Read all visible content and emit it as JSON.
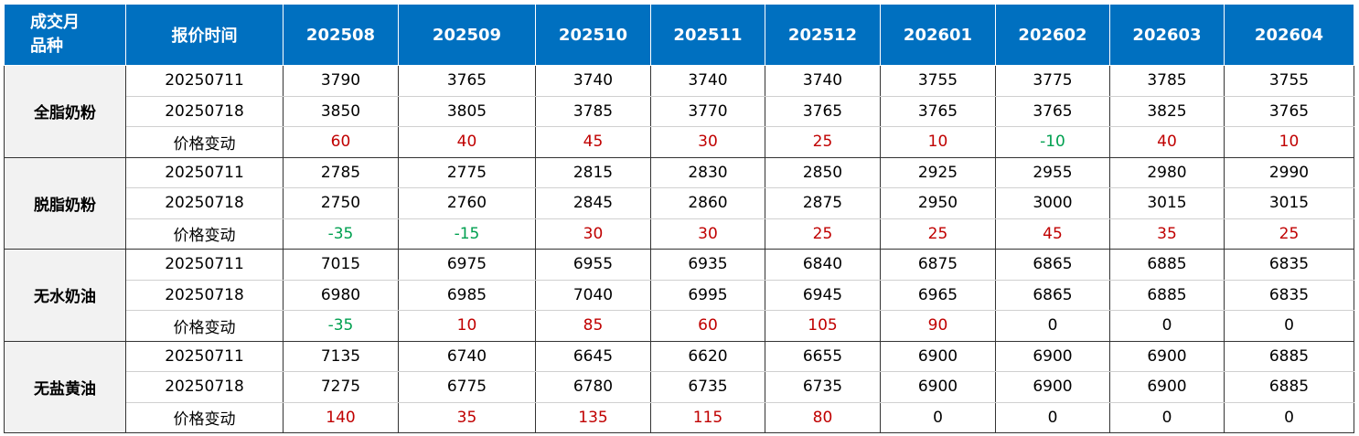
{
  "header": {
    "corner": [
      "成交月",
      "品种"
    ],
    "time": "报价时间",
    "months": [
      "202508",
      "202509",
      "202510",
      "202511",
      "202512",
      "202601",
      "202602",
      "202603",
      "202604"
    ]
  },
  "groups": [
    {
      "name": "全脂奶粉",
      "rows": [
        {
          "label": "20250711",
          "values": [
            3790,
            3765,
            3740,
            3740,
            3740,
            3755,
            3775,
            3785,
            3755
          ]
        },
        {
          "label": "20250718",
          "values": [
            3850,
            3805,
            3785,
            3770,
            3765,
            3765,
            3765,
            3825,
            3765
          ]
        },
        {
          "label": "价格变动",
          "values": [
            60,
            40,
            45,
            30,
            25,
            10,
            -10,
            40,
            10
          ]
        }
      ]
    },
    {
      "name": "脱脂奶粉",
      "rows": [
        {
          "label": "20250711",
          "values": [
            2785,
            2775,
            2815,
            2830,
            2850,
            2925,
            2955,
            2980,
            2990
          ]
        },
        {
          "label": "20250718",
          "values": [
            2750,
            2760,
            2845,
            2860,
            2875,
            2950,
            3000,
            3015,
            3015
          ]
        },
        {
          "label": "价格变动",
          "values": [
            -35,
            -15,
            30,
            30,
            25,
            25,
            45,
            35,
            25
          ]
        }
      ]
    },
    {
      "name": "无水奶油",
      "rows": [
        {
          "label": "20250711",
          "values": [
            7015,
            6975,
            6955,
            6935,
            6840,
            6875,
            6865,
            6885,
            6835
          ]
        },
        {
          "label": "20250718",
          "values": [
            6980,
            6985,
            7040,
            6995,
            6945,
            6965,
            6865,
            6885,
            6835
          ]
        },
        {
          "label": "价格变动",
          "values": [
            -35,
            10,
            85,
            60,
            105,
            90,
            0,
            0,
            0
          ]
        }
      ]
    },
    {
      "name": "无盐黄油",
      "rows": [
        {
          "label": "20250711",
          "values": [
            7135,
            6740,
            6645,
            6620,
            6655,
            6900,
            6900,
            6900,
            6885
          ]
        },
        {
          "label": "20250718",
          "values": [
            7275,
            6775,
            6780,
            6735,
            6735,
            6900,
            6900,
            6900,
            6885
          ]
        },
        {
          "label": "价格变动",
          "values": [
            140,
            35,
            135,
            115,
            80,
            0,
            0,
            0,
            0
          ]
        }
      ]
    }
  ]
}
